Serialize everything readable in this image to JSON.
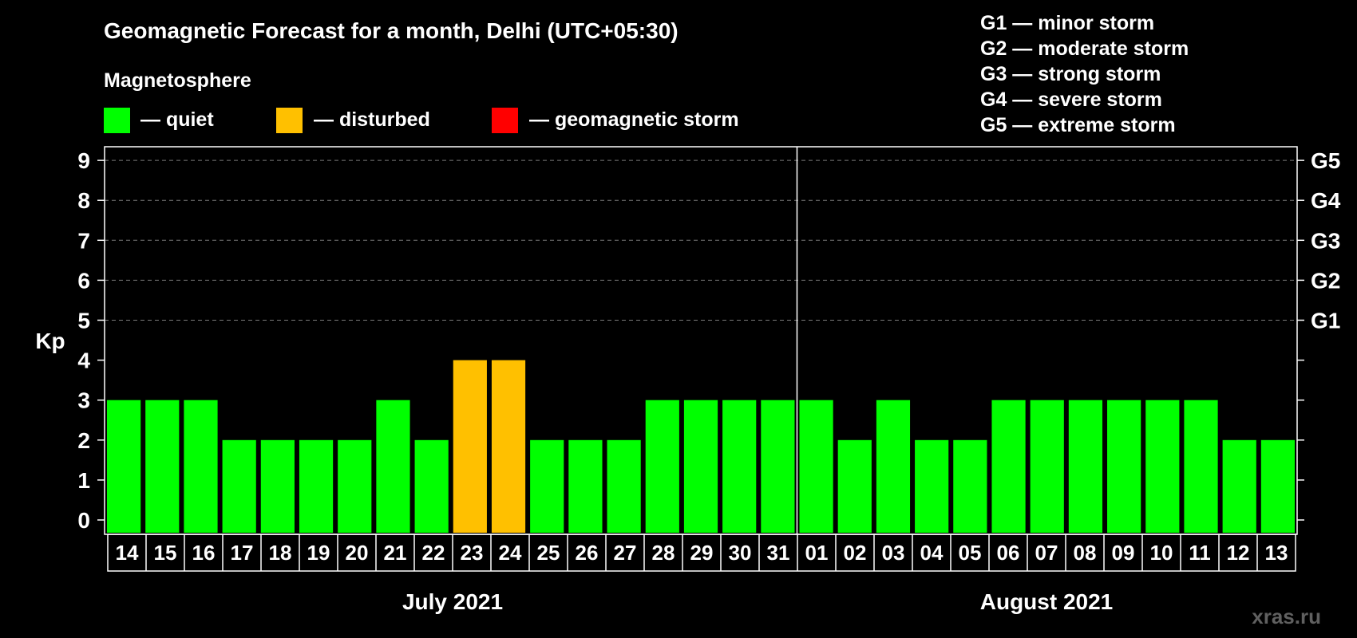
{
  "chart_data": {
    "type": "bar",
    "title": "Geomagnetic Forecast for a month, Delhi (UTC+05:30)",
    "subtitle": "Magnetosphere",
    "ylabel": "Kp",
    "ylim": [
      0,
      9
    ],
    "yticks": [
      "0",
      "1",
      "2",
      "3",
      "4",
      "5",
      "6",
      "7",
      "8",
      "9"
    ],
    "grid": true,
    "storm_axis_labels": [
      {
        "kp": 5,
        "label": "G1"
      },
      {
        "kp": 6,
        "label": "G2"
      },
      {
        "kp": 7,
        "label": "G3"
      },
      {
        "kp": 8,
        "label": "G4"
      },
      {
        "kp": 9,
        "label": "G5"
      }
    ],
    "legend": [
      {
        "label": "— quiet",
        "color": "#00ff00"
      },
      {
        "label": "— disturbed",
        "color": "#ffc000"
      },
      {
        "label": "— geomagnetic storm",
        "color": "#ff0000"
      }
    ],
    "storm_scale": [
      "G1 — minor storm",
      "G2 — moderate storm",
      "G3 — strong storm",
      "G4 — severe storm",
      "G5 — extreme storm"
    ],
    "months": [
      {
        "label": "July 2021",
        "days": 18
      },
      {
        "label": "August 2021",
        "days": 13
      }
    ],
    "categories": [
      "14",
      "15",
      "16",
      "17",
      "18",
      "19",
      "20",
      "21",
      "22",
      "23",
      "24",
      "25",
      "26",
      "27",
      "28",
      "29",
      "30",
      "31",
      "01",
      "02",
      "03",
      "04",
      "05",
      "06",
      "07",
      "08",
      "09",
      "10",
      "11",
      "12",
      "13"
    ],
    "values": [
      3,
      3,
      3,
      2,
      2,
      2,
      2,
      3,
      2,
      4,
      4,
      2,
      2,
      2,
      3,
      3,
      3,
      3,
      3,
      2,
      3,
      2,
      2,
      3,
      3,
      3,
      3,
      3,
      3,
      2,
      2
    ],
    "colors": {
      "quiet": "#00ff00",
      "disturbed": "#ffc000",
      "storm": "#ff0000"
    }
  },
  "watermark": "xras.ru"
}
